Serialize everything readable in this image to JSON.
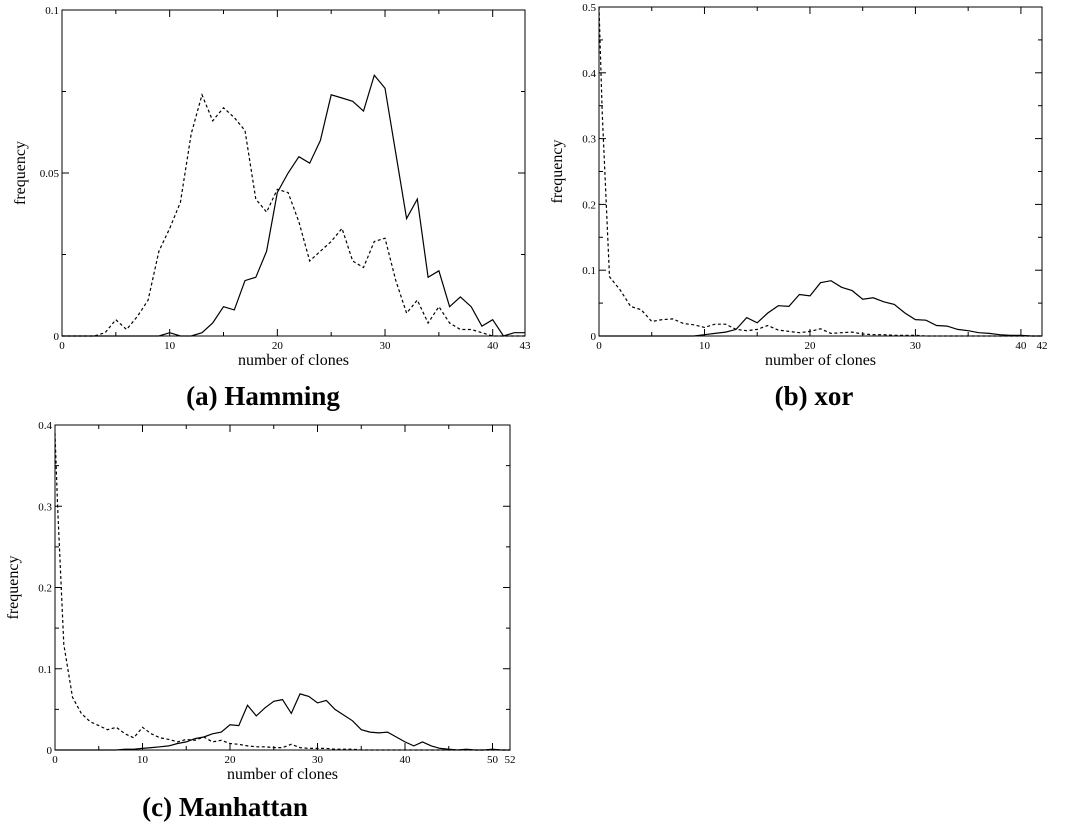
{
  "chart_data": [
    {
      "type": "line",
      "caption": "(a) Hamming",
      "xlabel": "number of clones",
      "ylabel": "frequency",
      "xlim": [
        0,
        43
      ],
      "ylim": [
        0,
        0.1
      ],
      "x_ticks": [
        0,
        10,
        20,
        30,
        40,
        43
      ],
      "y_ticks": [
        0,
        0.05,
        0.1
      ],
      "y_tick_labels": [
        "0",
        "0.05",
        "0.1"
      ],
      "grid": false,
      "series": [
        {
          "style": "solid",
          "x": [
            0,
            1,
            2,
            3,
            4,
            5,
            6,
            7,
            8,
            9,
            10,
            11,
            12,
            13,
            14,
            15,
            16,
            17,
            18,
            19,
            20,
            21,
            22,
            23,
            24,
            25,
            26,
            27,
            28,
            29,
            30,
            31,
            32,
            33,
            34,
            35,
            36,
            37,
            38,
            39,
            40,
            41,
            42,
            43
          ],
          "y": [
            0,
            0,
            0,
            0,
            0,
            0,
            0,
            0,
            0,
            0,
            0.001,
            0,
            0,
            0.001,
            0.004,
            0.009,
            0.008,
            0.017,
            0.018,
            0.026,
            0.044,
            0.05,
            0.055,
            0.053,
            0.06,
            0.074,
            0.073,
            0.072,
            0.069,
            0.08,
            0.076,
            0.056,
            0.036,
            0.042,
            0.018,
            0.02,
            0.009,
            0.012,
            0.009,
            0.003,
            0.005,
            0,
            0.001,
            0.001
          ]
        },
        {
          "style": "dashed",
          "x": [
            0,
            1,
            2,
            3,
            4,
            5,
            6,
            7,
            8,
            9,
            10,
            11,
            12,
            13,
            14,
            15,
            16,
            17,
            18,
            19,
            20,
            21,
            22,
            23,
            24,
            25,
            26,
            27,
            28,
            29,
            30,
            31,
            32,
            33,
            34,
            35,
            36,
            37,
            38,
            39,
            40,
            41,
            42,
            43
          ],
          "y": [
            0,
            0,
            0,
            0,
            0.001,
            0.005,
            0.002,
            0.006,
            0.011,
            0.026,
            0.033,
            0.041,
            0.062,
            0.074,
            0.066,
            0.07,
            0.067,
            0.063,
            0.042,
            0.038,
            0.045,
            0.044,
            0.035,
            0.023,
            0.026,
            0.029,
            0.033,
            0.023,
            0.021,
            0.029,
            0.03,
            0.017,
            0.007,
            0.011,
            0.004,
            0.009,
            0.004,
            0.002,
            0.002,
            0.001,
            0,
            0,
            0,
            0
          ]
        }
      ]
    },
    {
      "type": "line",
      "caption": "(b) xor",
      "xlabel": "number of clones",
      "ylabel": "frequency",
      "xlim": [
        0,
        42
      ],
      "ylim": [
        0,
        0.5
      ],
      "x_ticks": [
        0,
        10,
        20,
        30,
        40,
        42
      ],
      "y_ticks": [
        0,
        0.1,
        0.2,
        0.3,
        0.4,
        0.5
      ],
      "y_tick_labels": [
        "0",
        "0.1",
        "0.2",
        "0.3",
        "0.4",
        "0.5"
      ],
      "grid": false,
      "series": [
        {
          "style": "solid",
          "x": [
            0,
            1,
            2,
            3,
            4,
            5,
            6,
            7,
            8,
            9,
            10,
            11,
            12,
            13,
            14,
            15,
            16,
            17,
            18,
            19,
            20,
            21,
            22,
            23,
            24,
            25,
            26,
            27,
            28,
            29,
            30,
            31,
            32,
            33,
            34,
            35,
            36,
            37,
            38,
            39,
            40,
            41,
            42
          ],
          "y": [
            0,
            0,
            0,
            0,
            0,
            0,
            0,
            0,
            0,
            0,
            0.002,
            0.004,
            0.006,
            0.01,
            0.028,
            0.02,
            0.035,
            0.046,
            0.045,
            0.063,
            0.061,
            0.081,
            0.084,
            0.074,
            0.069,
            0.056,
            0.058,
            0.052,
            0.048,
            0.035,
            0.025,
            0.024,
            0.016,
            0.015,
            0.01,
            0.008,
            0.005,
            0.004,
            0.002,
            0.001,
            0.001,
            0,
            0
          ]
        },
        {
          "style": "dashed",
          "x": [
            0,
            0.3,
            1,
            2,
            3,
            4,
            5,
            6,
            7,
            8,
            9,
            10,
            11,
            12,
            13,
            14,
            15,
            16,
            17,
            18,
            19,
            20,
            21,
            22,
            23,
            24,
            25,
            26,
            27,
            28,
            29,
            30,
            31,
            32,
            33,
            34,
            35,
            36,
            37,
            38,
            39,
            40,
            41,
            42
          ],
          "y": [
            0.5,
            0.34,
            0.09,
            0.07,
            0.045,
            0.04,
            0.022,
            0.025,
            0.026,
            0.019,
            0.017,
            0.013,
            0.018,
            0.018,
            0.01,
            0.008,
            0.01,
            0.016,
            0.009,
            0.007,
            0.005,
            0.007,
            0.011,
            0.004,
            0.005,
            0.006,
            0.003,
            0.002,
            0.002,
            0.001,
            0.001,
            0.001,
            0,
            0,
            0,
            0,
            0,
            0,
            0,
            0,
            0,
            0,
            0,
            0
          ]
        }
      ]
    },
    {
      "type": "line",
      "caption": "(c) Manhattan",
      "xlabel": "number of clones",
      "ylabel": "frequency",
      "xlim": [
        0,
        52
      ],
      "ylim": [
        0,
        0.4
      ],
      "x_ticks": [
        0,
        10,
        20,
        30,
        40,
        50,
        52
      ],
      "y_ticks": [
        0,
        0.1,
        0.2,
        0.3,
        0.4
      ],
      "y_tick_labels": [
        "0",
        "0.1",
        "0.2",
        "0.3",
        "0.4"
      ],
      "grid": false,
      "series": [
        {
          "style": "solid",
          "x": [
            0,
            1,
            2,
            3,
            4,
            5,
            6,
            7,
            8,
            9,
            10,
            11,
            12,
            13,
            14,
            15,
            16,
            17,
            18,
            19,
            20,
            21,
            22,
            23,
            24,
            25,
            26,
            27,
            28,
            29,
            30,
            31,
            32,
            33,
            34,
            35,
            36,
            37,
            38,
            39,
            40,
            41,
            42,
            43,
            44,
            45,
            46,
            47,
            48,
            49,
            50,
            51,
            52
          ],
          "y": [
            0,
            0,
            0,
            0,
            0,
            0,
            0,
            0,
            0.001,
            0.001,
            0.002,
            0.003,
            0.004,
            0.005,
            0.008,
            0.01,
            0.014,
            0.016,
            0.02,
            0.022,
            0.031,
            0.03,
            0.055,
            0.042,
            0.052,
            0.06,
            0.062,
            0.045,
            0.069,
            0.066,
            0.058,
            0.061,
            0.05,
            0.043,
            0.036,
            0.025,
            0.022,
            0.021,
            0.022,
            0.016,
            0.01,
            0.005,
            0.01,
            0.005,
            0.002,
            0.001,
            0,
            0.001,
            0,
            0,
            0.001,
            0,
            0
          ]
        },
        {
          "style": "dashed",
          "x": [
            0,
            0.3,
            1,
            2,
            3,
            4,
            5,
            6,
            7,
            8,
            9,
            10,
            11,
            12,
            13,
            14,
            15,
            16,
            17,
            18,
            19,
            20,
            21,
            22,
            23,
            24,
            25,
            26,
            27,
            28,
            29,
            30,
            31,
            32,
            33,
            34,
            35,
            36,
            37,
            38,
            39,
            40,
            41,
            42,
            43,
            44,
            45,
            46,
            47,
            48,
            49,
            50,
            51,
            52
          ],
          "y": [
            0.39,
            0.3,
            0.13,
            0.065,
            0.045,
            0.035,
            0.03,
            0.025,
            0.028,
            0.02,
            0.015,
            0.028,
            0.02,
            0.015,
            0.013,
            0.01,
            0.013,
            0.012,
            0.016,
            0.01,
            0.012,
            0.008,
            0.007,
            0.005,
            0.004,
            0.004,
            0.003,
            0.003,
            0.007,
            0.003,
            0.002,
            0.002,
            0.002,
            0.001,
            0.001,
            0.001,
            0,
            0,
            0,
            0,
            0,
            0,
            0,
            0,
            0,
            0,
            0,
            0,
            0,
            0,
            0,
            0,
            0,
            0
          ]
        }
      ]
    }
  ]
}
